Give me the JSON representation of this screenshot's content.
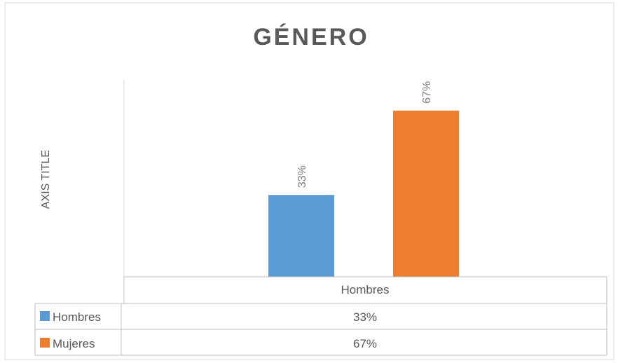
{
  "chart_data": {
    "type": "bar",
    "title": "GÉNERO",
    "xlabel": "",
    "ylabel": "AXIS TITLE",
    "categories": [
      "Hombres"
    ],
    "series": [
      {
        "name": "Hombres",
        "values": [
          0.33
        ],
        "label": "33%",
        "color": "#5b9bd5"
      },
      {
        "name": "Mujeres",
        "values": [
          0.67
        ],
        "label": "67%",
        "color": "#ed7d31"
      }
    ],
    "ylim": [
      0,
      0.8
    ],
    "grid": false,
    "legend": "data-table-below",
    "data_table": {
      "header": "Hombres",
      "rows": [
        {
          "key": "Hombres",
          "value": "33%"
        },
        {
          "key": "Mujeres",
          "value": "67%"
        }
      ]
    }
  }
}
